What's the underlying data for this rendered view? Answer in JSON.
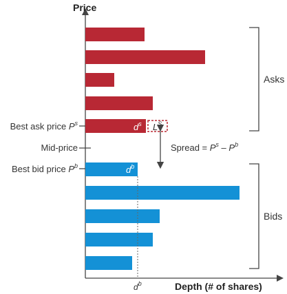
{
  "chart_data": {
    "type": "bar",
    "orientation": "horizontal",
    "ylabel": "Price",
    "xlabel": "Depth (# of shares)",
    "xlim": [
      0,
      280
    ],
    "series": [
      {
        "name": "Asks",
        "color": "#b82834",
        "values": [
          86,
          174,
          42,
          98,
          88
        ],
        "ls_width": 30
      },
      {
        "name": "Bids",
        "color": "#1491d6",
        "values": [
          76,
          224,
          108,
          98,
          68
        ]
      }
    ],
    "annotations": {
      "best_ask": {
        "text": "Best ask price ",
        "sym": "P",
        "sup": "s"
      },
      "mid": {
        "text": "Mid-price"
      },
      "best_bid": {
        "text": "Best bid price ",
        "sym": "P",
        "sup": "b"
      },
      "spread": {
        "text": "Spread = ",
        "a": "P",
        "a_sup": "s",
        "minus": " – ",
        "b": "P",
        "b_sup": "b"
      },
      "ds": {
        "sym": "d",
        "sup": "s"
      },
      "ls": {
        "sym": "L",
        "sup": "S"
      },
      "db": {
        "sym": "d",
        "sup": "b"
      },
      "db_axis": {
        "sym": "d",
        "sup": "b"
      },
      "asks_label": "Asks",
      "bids_label": "Bids"
    },
    "grid": false
  }
}
